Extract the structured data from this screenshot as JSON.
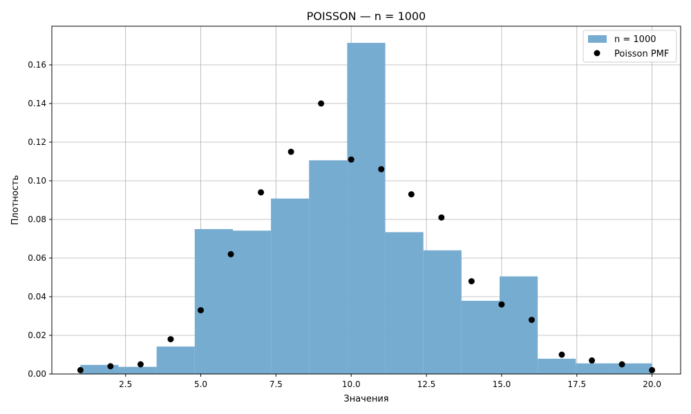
{
  "chart_data": {
    "type": "bar",
    "title": "POISSON — n = 1000",
    "xlabel": "Значения",
    "ylabel": "Плотность",
    "xlim": [
      0.05,
      20.95
    ],
    "ylim": [
      0,
      0.18
    ],
    "xticks": [
      2.5,
      5.0,
      7.5,
      10.0,
      12.5,
      15.0,
      17.5,
      20.0
    ],
    "xtick_labels": [
      "2.5",
      "5.0",
      "7.5",
      "10.0",
      "12.5",
      "15.0",
      "17.5",
      "20.0"
    ],
    "yticks": [
      0.0,
      0.02,
      0.04,
      0.06,
      0.08,
      0.1,
      0.12,
      0.14,
      0.16
    ],
    "ytick_labels": [
      "0.00",
      "0.02",
      "0.04",
      "0.06",
      "0.08",
      "0.10",
      "0.12",
      "0.14",
      "0.16"
    ],
    "grid": true,
    "legend_position": "top-right",
    "series": [
      {
        "name": "n = 1000",
        "kind": "histogram",
        "color": "#77acd1",
        "bin_edges": [
          1.0,
          2.267,
          3.533,
          4.8,
          6.067,
          7.333,
          8.6,
          9.867,
          11.133,
          12.4,
          13.667,
          14.933,
          16.2,
          17.467,
          18.733,
          20.0
        ],
        "densities": [
          0.0047,
          0.0037,
          0.0142,
          0.075,
          0.0742,
          0.0908,
          0.1106,
          0.1714,
          0.0734,
          0.064,
          0.0379,
          0.0505,
          0.0079,
          0.0055,
          0.0055
        ]
      },
      {
        "name": "Poisson PMF",
        "kind": "scatter",
        "color": "#000000",
        "x": [
          1,
          2,
          3,
          4,
          5,
          6,
          7,
          8,
          9,
          10,
          11,
          12,
          13,
          14,
          15,
          16,
          17,
          18,
          19,
          20
        ],
        "y": [
          0.002,
          0.004,
          0.005,
          0.018,
          0.033,
          0.062,
          0.094,
          0.115,
          0.14,
          0.111,
          0.106,
          0.093,
          0.081,
          0.048,
          0.036,
          0.028,
          0.01,
          0.007,
          0.005,
          0.002
        ]
      }
    ]
  }
}
